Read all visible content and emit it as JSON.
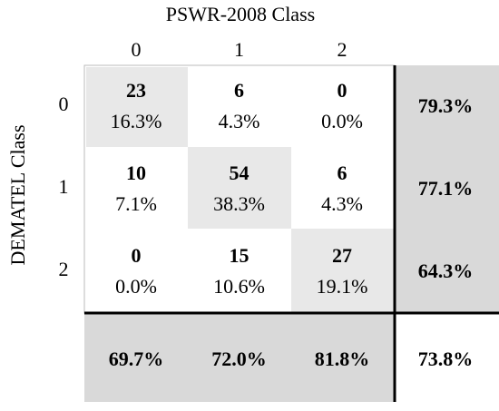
{
  "header": {
    "title": "PSWR-2008 Class",
    "columns": [
      "0",
      "1",
      "2"
    ]
  },
  "side": {
    "title": "DEMATEL Class",
    "rows": [
      "0",
      "1",
      "2"
    ]
  },
  "matrix": [
    [
      {
        "count": "23",
        "percent": "16.3%"
      },
      {
        "count": "6",
        "percent": "4.3%"
      },
      {
        "count": "0",
        "percent": "0.0%"
      }
    ],
    [
      {
        "count": "10",
        "percent": "7.1%"
      },
      {
        "count": "54",
        "percent": "38.3%"
      },
      {
        "count": "6",
        "percent": "4.3%"
      }
    ],
    [
      {
        "count": "0",
        "percent": "0.0%"
      },
      {
        "count": "15",
        "percent": "10.6%"
      },
      {
        "count": "27",
        "percent": "19.1%"
      }
    ]
  ],
  "row_totals": [
    "79.3%",
    "77.1%",
    "64.3%"
  ],
  "column_totals": [
    "69.7%",
    "72.0%",
    "81.8%"
  ],
  "overall": "73.8%"
}
